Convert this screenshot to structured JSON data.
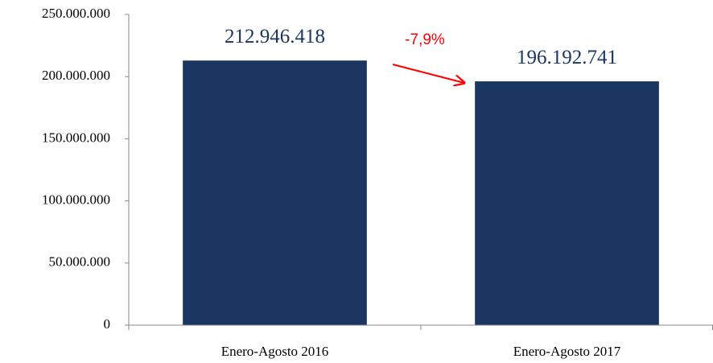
{
  "chart_data": {
    "type": "bar",
    "categories": [
      "Enero-Agosto 2016",
      "Enero-Agosto 2017"
    ],
    "values": [
      212946418,
      196192741
    ],
    "value_labels": [
      "212.946.418",
      "196.192.741"
    ],
    "color": "#1b3660",
    "ylim": [
      0,
      250000000
    ],
    "yticks": [
      0,
      {
        "value": 50000000,
        "label": "50.000.000"
      },
      {
        "value": 100000000,
        "label": "100.000.000"
      },
      {
        "value": 150000000,
        "label": "150.000.000"
      },
      {
        "value": 200000000,
        "label": "200.000.000"
      },
      {
        "value": 250000000,
        "label": "250.000.000"
      }
    ],
    "annotation": "-7,9%"
  }
}
